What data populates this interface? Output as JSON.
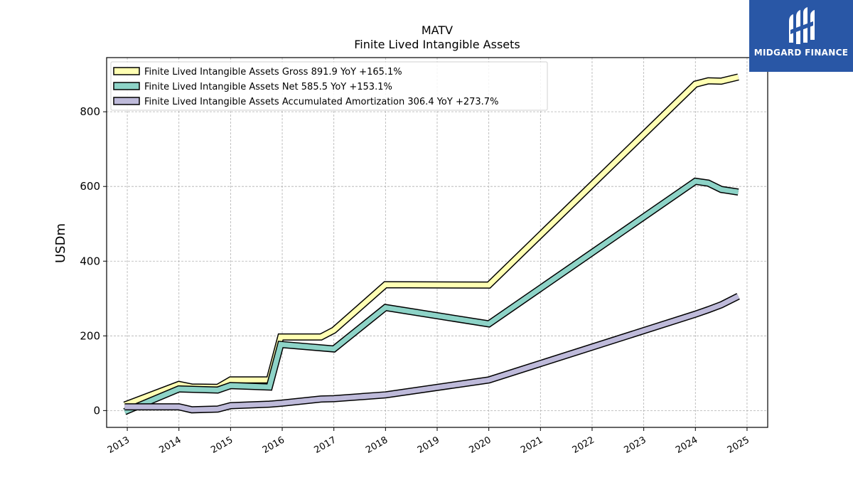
{
  "brand": {
    "name": "MIDGARD FINANCE",
    "color": "#2957a6",
    "icon": "midgard-logo-icon"
  },
  "chart_data": {
    "type": "line",
    "title": "MATV",
    "subtitle": "Finite Lived Intangible Assets",
    "xlabel": "",
    "ylabel": "USDm",
    "xlim": [
      2012.6,
      2025.4
    ],
    "ylim": [
      -45,
      945
    ],
    "xticks": [
      "2013",
      "2014",
      "2015",
      "2016",
      "2017",
      "2018",
      "2019",
      "2020",
      "2021",
      "2022",
      "2023",
      "2024",
      "2025"
    ],
    "yticks": [
      0,
      200,
      400,
      600,
      800
    ],
    "grid": true,
    "legend_position": "top-left",
    "series": [
      {
        "name": "Finite Lived Intangible Assets Gross",
        "legend": "Finite Lived Intangible Assets Gross  891.9 YoY +165.1%",
        "color": "#ffffb3",
        "points": [
          [
            2012.95,
            15
          ],
          [
            2014.0,
            70
          ],
          [
            2014.25,
            63
          ],
          [
            2014.75,
            62
          ],
          [
            2015.0,
            82
          ],
          [
            2015.75,
            82
          ],
          [
            2015.97,
            197
          ],
          [
            2016.75,
            197
          ],
          [
            2017.0,
            215
          ],
          [
            2018.0,
            337
          ],
          [
            2020.0,
            336
          ],
          [
            2024.0,
            874
          ],
          [
            2024.25,
            883
          ],
          [
            2024.5,
            882
          ],
          [
            2024.83,
            893
          ]
        ]
      },
      {
        "name": "Finite Lived Intangible Assets Net",
        "legend": "Finite Lived Intangible Assets Net  585.5 YoY +153.1%",
        "color": "#8dd3c7",
        "points": [
          [
            2012.95,
            -3
          ],
          [
            2014.0,
            58
          ],
          [
            2014.75,
            55
          ],
          [
            2015.0,
            67
          ],
          [
            2015.75,
            63
          ],
          [
            2015.97,
            177
          ],
          [
            2017.0,
            165
          ],
          [
            2018.0,
            276
          ],
          [
            2020.0,
            232
          ],
          [
            2024.0,
            614
          ],
          [
            2024.25,
            609
          ],
          [
            2024.5,
            592
          ],
          [
            2024.83,
            585
          ]
        ]
      },
      {
        "name": "Finite Lived Intangible Assets Accumulated Amortization",
        "legend": "Finite Lived Intangible Assets Accumulated Amortization  306.4 YoY +273.7%",
        "color": "#bebada",
        "points": [
          [
            2012.95,
            10
          ],
          [
            2014.0,
            10
          ],
          [
            2014.25,
            2
          ],
          [
            2014.75,
            4
          ],
          [
            2015.0,
            13
          ],
          [
            2015.75,
            17
          ],
          [
            2016.0,
            20
          ],
          [
            2016.75,
            31
          ],
          [
            2017.0,
            32
          ],
          [
            2018.0,
            42
          ],
          [
            2020.0,
            82
          ],
          [
            2024.0,
            258
          ],
          [
            2024.25,
            270
          ],
          [
            2024.5,
            283
          ],
          [
            2024.83,
            306
          ]
        ]
      }
    ]
  }
}
